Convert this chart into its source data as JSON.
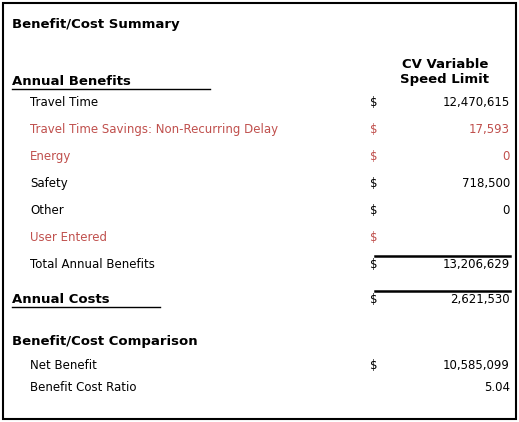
{
  "title": "Benefit/Cost Summary",
  "col_header_line1": "CV Variable",
  "col_header_line2": "Speed Limit",
  "sections": [
    {
      "label": "Annual Benefits",
      "items": [
        {
          "label": "Travel Time",
          "dollar": true,
          "value": "12,470,615",
          "color": "#000000"
        },
        {
          "label": "Travel Time Savings: Non-Recurring Delay",
          "dollar": true,
          "value": "17,593",
          "color": "#C0504D"
        },
        {
          "label": "Energy",
          "dollar": true,
          "value": "0",
          "color": "#C0504D"
        },
        {
          "label": "Safety",
          "dollar": true,
          "value": "718,500",
          "color": "#000000"
        },
        {
          "label": "Other",
          "dollar": true,
          "value": "0",
          "color": "#000000"
        },
        {
          "label": "User Entered",
          "dollar": true,
          "value": "",
          "color": "#C0504D"
        },
        {
          "label": "Total Annual Benefits",
          "dollar": true,
          "value": "13,206,629",
          "color": "#000000",
          "top_border": true
        }
      ]
    },
    {
      "label": "Annual Costs",
      "dollar": true,
      "value": "2,621,530",
      "top_border": true
    },
    {
      "label": "Benefit/Cost Comparison",
      "items": [
        {
          "label": "Net Benefit",
          "dollar": true,
          "value": "10,585,099",
          "color": "#000000"
        },
        {
          "label": "Benefit Cost Ratio",
          "dollar": false,
          "value": "5.04",
          "color": "#000000"
        }
      ]
    }
  ],
  "bg_color": "#FFFFFF",
  "border_color": "#000000",
  "text_color": "#000000",
  "red_color": "#C0504D"
}
